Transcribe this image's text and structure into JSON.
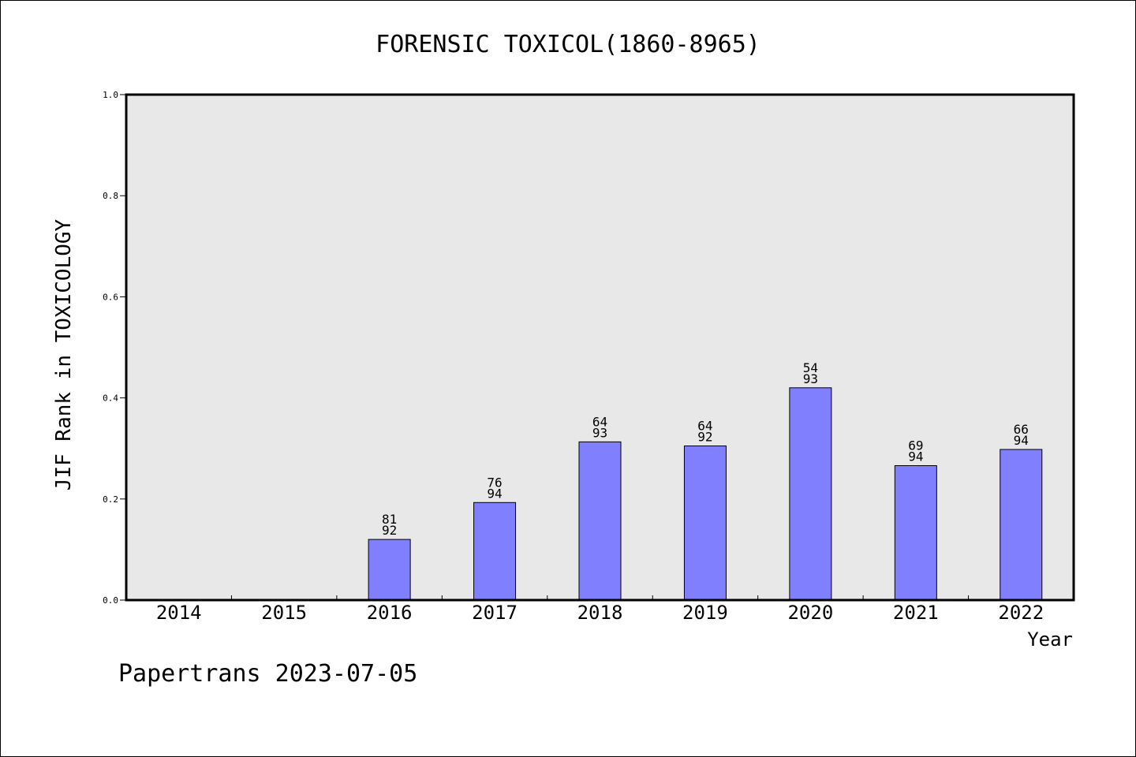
{
  "chart_data": {
    "type": "bar",
    "title": "FORENSIC TOXICOL(1860-8965)",
    "xlabel": "Year",
    "ylabel": "JIF Rank in TOXICOLOGY",
    "ylim": [
      0,
      1.0
    ],
    "yticks": [
      "0.0",
      "0.2",
      "0.4",
      "0.6",
      "0.8",
      "1.0"
    ],
    "grid": false,
    "legend": "none",
    "bar_color": "#8080ff",
    "plot_background": "#e8e8e8",
    "categories": [
      "2014",
      "2015",
      "2016",
      "2017",
      "2018",
      "2019",
      "2020",
      "2021",
      "2022"
    ],
    "values": [
      null,
      null,
      0.12,
      0.193,
      0.313,
      0.305,
      0.42,
      0.266,
      0.298
    ],
    "labels": [
      null,
      null,
      {
        "rank": "81",
        "total": "92"
      },
      {
        "rank": "76",
        "total": "94"
      },
      {
        "rank": "64",
        "total": "93"
      },
      {
        "rank": "64",
        "total": "92"
      },
      {
        "rank": "54",
        "total": "93"
      },
      {
        "rank": "69",
        "total": "94"
      },
      {
        "rank": "66",
        "total": "94"
      }
    ]
  },
  "footer": "Papertrans 2023-07-05"
}
